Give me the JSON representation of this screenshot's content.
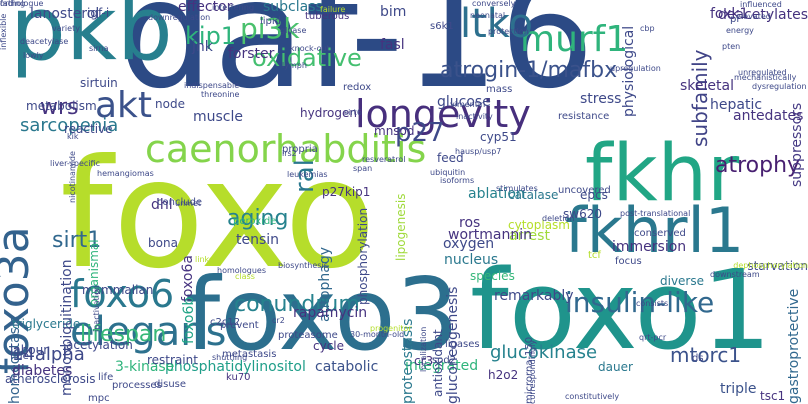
{
  "words": [
    {
      "text": "daf-16",
      "color": "#2c4a85",
      "vertical": false
    },
    {
      "text": "foxo",
      "color": "#b6dd2b",
      "vertical": false
    },
    {
      "text": "foxo1",
      "color": "#1f948c",
      "vertical": false
    },
    {
      "text": "foxo3",
      "color": "#2c6f8e",
      "vertical": false
    },
    {
      "text": "pkb",
      "color": "#277f8e",
      "vertical": false
    },
    {
      "text": "fkhr",
      "color": "#21a685",
      "vertical": false
    },
    {
      "text": "fkhrl1",
      "color": "#2a788e",
      "vertical": false
    },
    {
      "text": "foxo3a",
      "color": "#33628d",
      "vertical": true
    },
    {
      "text": "longevity",
      "color": "#472f7d",
      "vertical": false
    },
    {
      "text": "caenorhabditis",
      "color": "#84d44b",
      "vertical": false
    },
    {
      "text": "murf1",
      "color": "#2fb47c",
      "vertical": false
    },
    {
      "text": "elegans",
      "color": "#2d718e",
      "vertical": false
    },
    {
      "text": "akt",
      "color": "#3b528b",
      "vertical": false
    },
    {
      "text": "ltko",
      "color": "#2d708e",
      "vertical": false
    },
    {
      "text": "pi3k",
      "color": "#4ac16d",
      "vertical": false
    },
    {
      "text": "atrogin-1/mafbx",
      "color": "#3b528b",
      "vertical": false
    },
    {
      "text": "insulin-like",
      "color": "#31688e",
      "vertical": false
    },
    {
      "text": "conundrum",
      "color": "#26828e",
      "vertical": false
    },
    {
      "text": "foxo6",
      "color": "#2a788e",
      "vertical": false
    },
    {
      "text": "oxidative",
      "color": "#44bf70",
      "vertical": false
    },
    {
      "text": "sirt1",
      "color": "#31688e",
      "vertical": false
    },
    {
      "text": "lifespan",
      "color": "#37b878",
      "vertical": false
    },
    {
      "text": "atrophy",
      "color": "#482071",
      "vertical": false
    },
    {
      "text": "p27",
      "color": "#3e4989",
      "vertical": false
    },
    {
      "text": "kip1",
      "color": "#2fb47c",
      "vertical": false
    },
    {
      "text": "wrs",
      "color": "#46337f",
      "vertical": false
    },
    {
      "text": "aging",
      "color": "#26828e",
      "vertical": false
    },
    {
      "text": "mtorc1",
      "color": "#3b528b",
      "vertical": false
    },
    {
      "text": "glucokinase",
      "color": "#26828e",
      "vertical": false
    },
    {
      "text": "14alpha",
      "color": "#3e4989",
      "vertical": false
    },
    {
      "text": "sarcopenia",
      "color": "#2a788e",
      "vertical": false
    },
    {
      "text": "subfamily",
      "color": "#414487",
      "vertical": true
    },
    {
      "text": "foxo6a",
      "color": "#46337f",
      "vertical": true
    },
    {
      "text": "foxo6b",
      "color": "#20a486",
      "vertical": true
    },
    {
      "text": "suppressors",
      "color": "#443983",
      "vertical": true
    },
    {
      "text": "gastroprotective",
      "color": "#31688e",
      "vertical": true
    },
    {
      "text": "homeostasis",
      "color": "#33638d",
      "vertical": true
    },
    {
      "text": "autophagy",
      "color": "#31688e",
      "vertical": true
    },
    {
      "text": "proteostasis",
      "color": "#2a788e",
      "vertical": true
    },
    {
      "text": "ral",
      "color": "#2a788e",
      "vertical": true
    },
    {
      "text": "diabetes",
      "color": "#46337f",
      "vertical": false
    },
    {
      "text": "phosphatidylinositol",
      "color": "#1f9e89",
      "vertical": false
    },
    {
      "text": "3-kinase",
      "color": "#2fb47c",
      "vertical": false
    },
    {
      "text": "catabolic",
      "color": "#3b528b",
      "vertical": false
    },
    {
      "text": "integrated",
      "color": "#2fb47c",
      "vertical": false
    },
    {
      "text": "dauer",
      "color": "#2a788e",
      "vertical": false
    },
    {
      "text": "triple",
      "color": "#3b528b",
      "vertical": false
    },
    {
      "text": "tsc1",
      "color": "#46337f",
      "vertical": false
    },
    {
      "text": "tensin",
      "color": "#3e4989",
      "vertical": false
    },
    {
      "text": "oxygen",
      "color": "#3e4989",
      "vertical": false
    },
    {
      "text": "nucleus",
      "color": "#2a788e",
      "vertical": false
    },
    {
      "text": "species",
      "color": "#35b779",
      "vertical": false
    },
    {
      "text": "ablation",
      "color": "#26828e",
      "vertical": false
    },
    {
      "text": "catalase",
      "color": "#2a788e",
      "vertical": false
    },
    {
      "text": "epcs",
      "color": "#3e4989",
      "vertical": false
    },
    {
      "text": "sw620",
      "color": "#3e4989",
      "vertical": false
    },
    {
      "text": "glucose",
      "color": "#3e4989",
      "vertical": false
    },
    {
      "text": "stress",
      "color": "#3e4989",
      "vertical": false
    },
    {
      "text": "hepatic",
      "color": "#3e4989",
      "vertical": false
    },
    {
      "text": "skeletal",
      "color": "#46337f",
      "vertical": false
    },
    {
      "text": "foxk1",
      "color": "#46337f",
      "vertical": false
    },
    {
      "text": "deacetylates",
      "color": "#46337f",
      "vertical": false
    },
    {
      "text": "hydrogen",
      "color": "#46337f",
      "vertical": false
    },
    {
      "text": "sirtuin",
      "color": "#3e4989",
      "vertical": false
    },
    {
      "text": "metabolism",
      "color": "#3e4989",
      "vertical": false
    },
    {
      "text": "reactive",
      "color": "#3e4989",
      "vertical": false
    },
    {
      "text": "muscle",
      "color": "#3e4989",
      "vertical": false
    },
    {
      "text": "node",
      "color": "#3e4989",
      "vertical": false
    },
    {
      "text": "jnk",
      "color": "#3e4989",
      "vertical": false
    },
    {
      "text": "forster",
      "color": "#46337f",
      "vertical": false
    },
    {
      "text": "fasl",
      "color": "#46337f",
      "vertical": false
    },
    {
      "text": "effector",
      "color": "#46337f",
      "vertical": false
    },
    {
      "text": "subclass",
      "color": "#2a788e",
      "vertical": false
    },
    {
      "text": "tuberous",
      "color": "#46337f",
      "vertical": false
    },
    {
      "text": "lipid",
      "color": "#3e4989",
      "vertical": false
    },
    {
      "text": "bim",
      "color": "#3e4989",
      "vertical": false
    },
    {
      "text": "lanosterol",
      "color": "#3e4989",
      "vertical": false
    },
    {
      "text": "igf-i",
      "color": "#3e4989",
      "vertical": false
    },
    {
      "text": "feed",
      "color": "#3e4989",
      "vertical": false
    },
    {
      "text": "cyp51",
      "color": "#3e4989",
      "vertical": false
    },
    {
      "text": "antedates",
      "color": "#46337f",
      "vertical": false
    },
    {
      "text": "mnsod",
      "color": "#46337f",
      "vertical": false
    },
    {
      "text": "p27kip1",
      "color": "#46337f",
      "vertical": false
    },
    {
      "text": "ros",
      "color": "#46337f",
      "vertical": false
    },
    {
      "text": "arrest",
      "color": "#9fda3a",
      "vertical": false
    },
    {
      "text": "dhl",
      "color": "#46337f",
      "vertical": false
    },
    {
      "text": "peroxide",
      "color": "#2fb47c",
      "vertical": false
    },
    {
      "text": "wortmannin",
      "color": "#46337f",
      "vertical": false
    },
    {
      "text": "cytoplasm",
      "color": "#b5de2b",
      "vertical": false
    },
    {
      "text": "remarkably",
      "color": "#3e4989",
      "vertical": false
    },
    {
      "text": "immersion",
      "color": "#46337f",
      "vertical": false
    },
    {
      "text": "diverse",
      "color": "#2a788e",
      "vertical": false
    },
    {
      "text": "physiological",
      "color": "#3e4989",
      "vertical": true
    },
    {
      "text": "sirt6",
      "color": "#3e4989",
      "vertical": false
    },
    {
      "text": "redox",
      "color": "#3e4989",
      "vertical": false
    },
    {
      "text": "mass",
      "color": "#3e4989",
      "vertical": false
    },
    {
      "text": "resistance",
      "color": "#3e4989",
      "vertical": false
    },
    {
      "text": "starvation",
      "color": "#3e4989",
      "vertical": false
    },
    {
      "text": "gluconeogenesis",
      "color": "#3e4989",
      "vertical": true
    },
    {
      "text": "h2o2",
      "color": "#46337f",
      "vertical": false
    },
    {
      "text": "rapamycin",
      "color": "#46337f",
      "vertical": false
    },
    {
      "text": "cr3",
      "color": "#46337f",
      "vertical": false
    },
    {
      "text": "cycle",
      "color": "#46337f",
      "vertical": false
    },
    {
      "text": "triglyceride",
      "color": "#2a788e",
      "vertical": false
    },
    {
      "text": "fide",
      "color": "#3e4989",
      "vertical": false
    },
    {
      "text": "labour",
      "color": "#3e4989",
      "vertical": false
    },
    {
      "text": "acetylation",
      "color": "#3e4989",
      "vertical": false
    },
    {
      "text": "restraint",
      "color": "#3e4989",
      "vertical": false
    },
    {
      "text": "mammalian",
      "color": "#3e4989",
      "vertical": false
    },
    {
      "text": "bona",
      "color": "#3e4989",
      "vertical": false
    },
    {
      "text": "conclude",
      "color": "#3e4989",
      "vertical": false
    },
    {
      "text": "propria",
      "color": "#3e4989",
      "vertical": false
    },
    {
      "text": "atherosclerosis",
      "color": "#3e4989",
      "vertical": false
    },
    {
      "text": "c2c12",
      "color": "#3e4989",
      "vertical": false
    },
    {
      "text": "monoubiquitination",
      "color": "#3e4989",
      "vertical": true
    },
    {
      "text": "organismal",
      "color": "#2fb47c",
      "vertical": true
    },
    {
      "text": "lipogenesis",
      "color": "#9fda3a",
      "vertical": true
    },
    {
      "text": "antioxidant",
      "color": "#3e4989",
      "vertical": true
    },
    {
      "text": "phosphorylation",
      "color": "#3e4989",
      "vertical": true
    },
    {
      "text": "microrna-150",
      "color": "#3e4989",
      "vertical": true
    },
    {
      "text": "sod2",
      "color": "#3e4989",
      "vertical": false
    },
    {
      "text": "ds",
      "color": "#3e4989",
      "vertical": false
    },
    {
      "text": "ku70",
      "color": "#46337f",
      "vertical": false
    },
    {
      "text": "mpc",
      "color": "#3e4989",
      "vertical": false
    },
    {
      "text": "life",
      "color": "#3e4989",
      "vertical": false
    },
    {
      "text": "processes",
      "color": "#3e4989",
      "vertical": false
    },
    {
      "text": "disuse",
      "color": "#3e4989",
      "vertical": false
    },
    {
      "text": "proteasome",
      "color": "#3e4989",
      "vertical": false
    },
    {
      "text": "ligases",
      "color": "#3e4989",
      "vertical": false
    },
    {
      "text": "prevent",
      "color": "#3e4989",
      "vertical": false
    },
    {
      "text": "metastasis",
      "color": "#3e4989",
      "vertical": false
    },
    {
      "text": "shuttling",
      "color": "#3e4989",
      "vertical": false
    },
    {
      "text": "class",
      "color": "#b5de2b",
      "vertical": false
    },
    {
      "text": "links",
      "color": "#b5de2b",
      "vertical": false
    },
    {
      "text": "homologues",
      "color": "#3e4989",
      "vertical": false
    },
    {
      "text": "qrt-pcr",
      "color": "#3e4989",
      "vertical": false
    },
    {
      "text": "tcf",
      "color": "#b5de2b",
      "vertical": false
    },
    {
      "text": "focus",
      "color": "#3e4989",
      "vertical": false
    },
    {
      "text": "conserved",
      "color": "#3e4989",
      "vertical": false
    },
    {
      "text": "post-translational",
      "color": "#3e4989",
      "vertical": false
    },
    {
      "text": "ubiquitin",
      "color": "#3e4989",
      "vertical": false
    },
    {
      "text": "hausp/usp7",
      "color": "#3e4989",
      "vertical": false
    },
    {
      "text": "vimentin",
      "color": "#3e4989",
      "vertical": false
    },
    {
      "text": "inactivity",
      "color": "#3e4989",
      "vertical": false
    },
    {
      "text": "upregulation",
      "color": "#3e4989",
      "vertical": false
    },
    {
      "text": "energy",
      "color": "#3e4989",
      "vertical": false
    },
    {
      "text": "unregulated",
      "color": "#3e4989",
      "vertical": false
    },
    {
      "text": "dysregulation",
      "color": "#3e4989",
      "vertical": false
    },
    {
      "text": "mechanistically",
      "color": "#3e4989",
      "vertical": false
    },
    {
      "text": "pten",
      "color": "#3e4989",
      "vertical": false
    },
    {
      "text": "conversely",
      "color": "#3e4989",
      "vertical": false
    },
    {
      "text": "downregulation",
      "color": "#3e4989",
      "vertical": false
    },
    {
      "text": "interfering",
      "color": "#3e4989",
      "vertical": false
    },
    {
      "text": "failure",
      "color": "#b5de2b",
      "vertical": false
    },
    {
      "text": "glpase",
      "color": "#3e4989",
      "vertical": false
    },
    {
      "text": "knock-out",
      "color": "#3e4989",
      "vertical": false
    },
    {
      "text": "lymph",
      "color": "#3e4989",
      "vertical": false
    },
    {
      "text": "s6k1",
      "color": "#3e4989",
      "vertical": false
    },
    {
      "text": "neonatal",
      "color": "#3e4989",
      "vertical": false
    },
    {
      "text": "protection",
      "color": "#3e4989",
      "vertical": false
    },
    {
      "text": "indispensable",
      "color": "#3e4989",
      "vertical": false
    },
    {
      "text": "threonine",
      "color": "#3e4989",
      "vertical": false
    },
    {
      "text": "variety",
      "color": "#3e4989",
      "vertical": false
    },
    {
      "text": "deacetylase",
      "color": "#3e4989",
      "vertical": false
    },
    {
      "text": "lowly",
      "color": "#3e4989",
      "vertical": false
    },
    {
      "text": "sirna",
      "color": "#3e4989",
      "vertical": false
    },
    {
      "text": "kik",
      "color": "#3e4989",
      "vertical": false
    },
    {
      "text": "nicotinamide",
      "color": "#3e4989",
      "vertical": true
    },
    {
      "text": "liver-specific",
      "color": "#3e4989",
      "vertical": false
    },
    {
      "text": "irs2",
      "color": "#3e4989",
      "vertical": false
    },
    {
      "text": "span",
      "color": "#3e4989",
      "vertical": false
    },
    {
      "text": "leukemias",
      "color": "#3e4989",
      "vertical": false
    },
    {
      "text": "unmet",
      "color": "#3e4989",
      "vertical": false
    },
    {
      "text": "hemangiomas",
      "color": "#3e4989",
      "vertical": false
    },
    {
      "text": "isoforms",
      "color": "#3e4989",
      "vertical": false
    },
    {
      "text": "uncovered",
      "color": "#3e4989",
      "vertical": false
    },
    {
      "text": "stimulates",
      "color": "#3e4989",
      "vertical": false
    },
    {
      "text": "deletion",
      "color": "#3e4989",
      "vertical": false
    },
    {
      "text": "dephosphorylation",
      "color": "#b5de2b",
      "vertical": false
    },
    {
      "text": "downstream",
      "color": "#3e4989",
      "vertical": false
    },
    {
      "text": "consists",
      "color": "#3e4989",
      "vertical": false
    },
    {
      "text": "localization",
      "color": "#3e4989",
      "vertical": true
    },
    {
      "text": "progenitor",
      "color": "#b5de2b",
      "vertical": false
    },
    {
      "text": "30-month-old",
      "color": "#3e4989",
      "vertical": false
    },
    {
      "text": "inactivation",
      "color": "#3e4989",
      "vertical": true
    },
    {
      "text": "biosynthesis",
      "color": "#3e4989",
      "vertical": false
    },
    {
      "text": "constitutively",
      "color": "#3e4989",
      "vertical": false
    },
    {
      "text": "correspondingly",
      "color": "#3e4989",
      "vertical": true
    },
    {
      "text": "cr2",
      "color": "#3e4989",
      "vertical": false
    },
    {
      "text": "resveratrol",
      "color": "#3e4989",
      "vertical": false
    },
    {
      "text": "cbp",
      "color": "#3e4989",
      "vertical": false
    },
    {
      "text": "pi",
      "color": "#3e4989",
      "vertical": false
    },
    {
      "text": "elevated",
      "color": "#3e4989",
      "vertical": false
    },
    {
      "text": "influenced",
      "color": "#3e4989",
      "vertical": false
    },
    {
      "text": "inflexible",
      "color": "#3e4989",
      "vertical": true
    },
    {
      "text": "orthologue",
      "color": "#3e4989",
      "vertical": false
    },
    {
      "text": "fading",
      "color": "#3e4989",
      "vertical": false
    }
  ]
}
